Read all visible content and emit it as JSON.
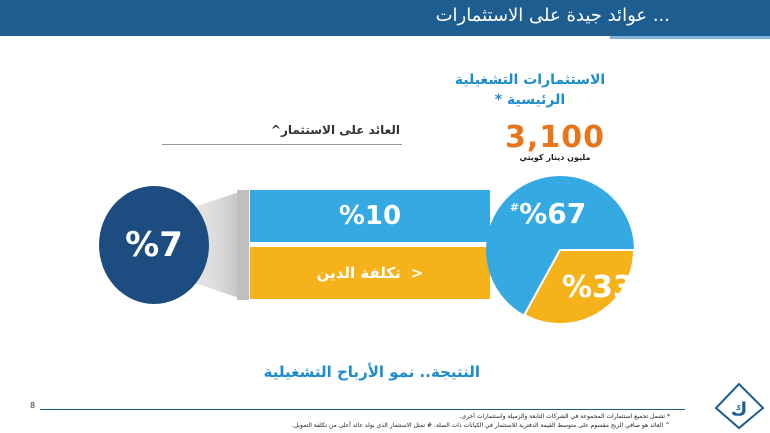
{
  "header": {
    "title": "... عوائد جيدة على الاستثمارات",
    "bg_color": "#1d5d8f"
  },
  "operational_investments": {
    "title_line1": "الاستثمارات التشغيلية",
    "title_line2": "الرئيسية *",
    "value": "3,100",
    "unit": "مليون دينار كويتي",
    "value_color": "#e8751a"
  },
  "return_on_investment": {
    "label": "العائد على الاستثمار^",
    "value": "%7"
  },
  "bars": {
    "blue_value": "%10",
    "orange_symbol": "<",
    "orange_label": "تكلفة الدين"
  },
  "pie": {
    "large_label": "%67",
    "large_marker": "#",
    "small_label": "%33",
    "large_share": 67,
    "small_share": 33,
    "colors": {
      "large": "#35a9e2",
      "small": "#f5b21a"
    }
  },
  "result": {
    "text": "النتيجة.. نمو الأرباح التشغيلية"
  },
  "footer": {
    "page_number": "8",
    "note1": "* تشمل تجميع استثمارات المجموعة في الشركات التابعة والزميلة واستثمارات أخرى.",
    "note2": "^ العائد هو صافي الربح مقسوم على متوسط القيمة الدفترية للاستثمار في الكيانات ذات الصلة. # تمثل الاستثمار الذي يولد عائد أعلى من تكلفة التمويل."
  },
  "logo": {
    "name": "company-logo"
  }
}
